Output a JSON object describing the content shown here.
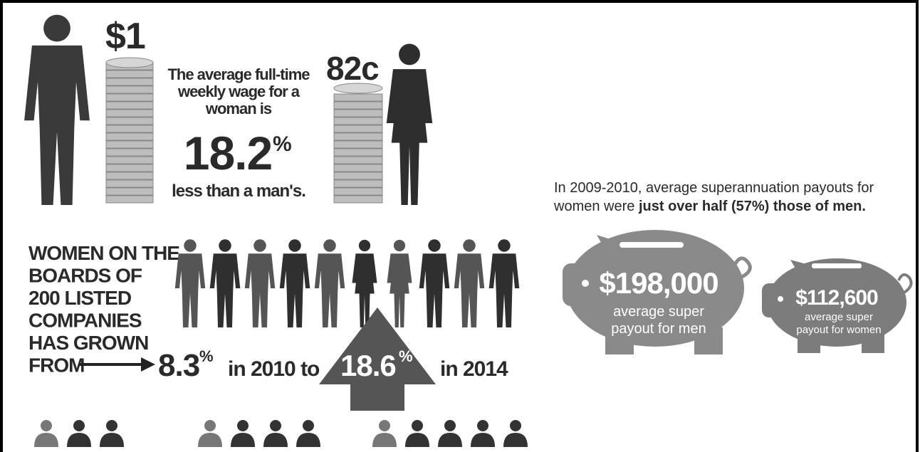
{
  "wage": {
    "men_amount": "$1",
    "women_amount": "82c",
    "description": [
      "The average full-time",
      "weekly wage for a",
      "woman is"
    ],
    "gap_number": "18.2",
    "gap_sign": "%",
    "gap_suffix": "less than a man's."
  },
  "boards": {
    "heading": [
      "WOMEN ON THE",
      "BOARDS OF",
      "200 LISTED",
      "COMPANIES",
      "HAS GROWN",
      "FROM"
    ],
    "start_number": "8.3",
    "start_sign": "%",
    "start_text": "in 2010 to",
    "end_number": "18.6",
    "end_sign": "%",
    "end_text": "in 2014"
  },
  "super": {
    "intro_line1": "In 2009-2010, average superannuation payouts for",
    "intro_line2": "women were",
    "intro_bold": "just over half (57%) those of men.",
    "men_amount": "$198,000",
    "men_caption": [
      "average super",
      "payout for men"
    ],
    "women_amount": "$112,600",
    "women_caption": [
      "average super",
      "payout for women"
    ]
  }
}
